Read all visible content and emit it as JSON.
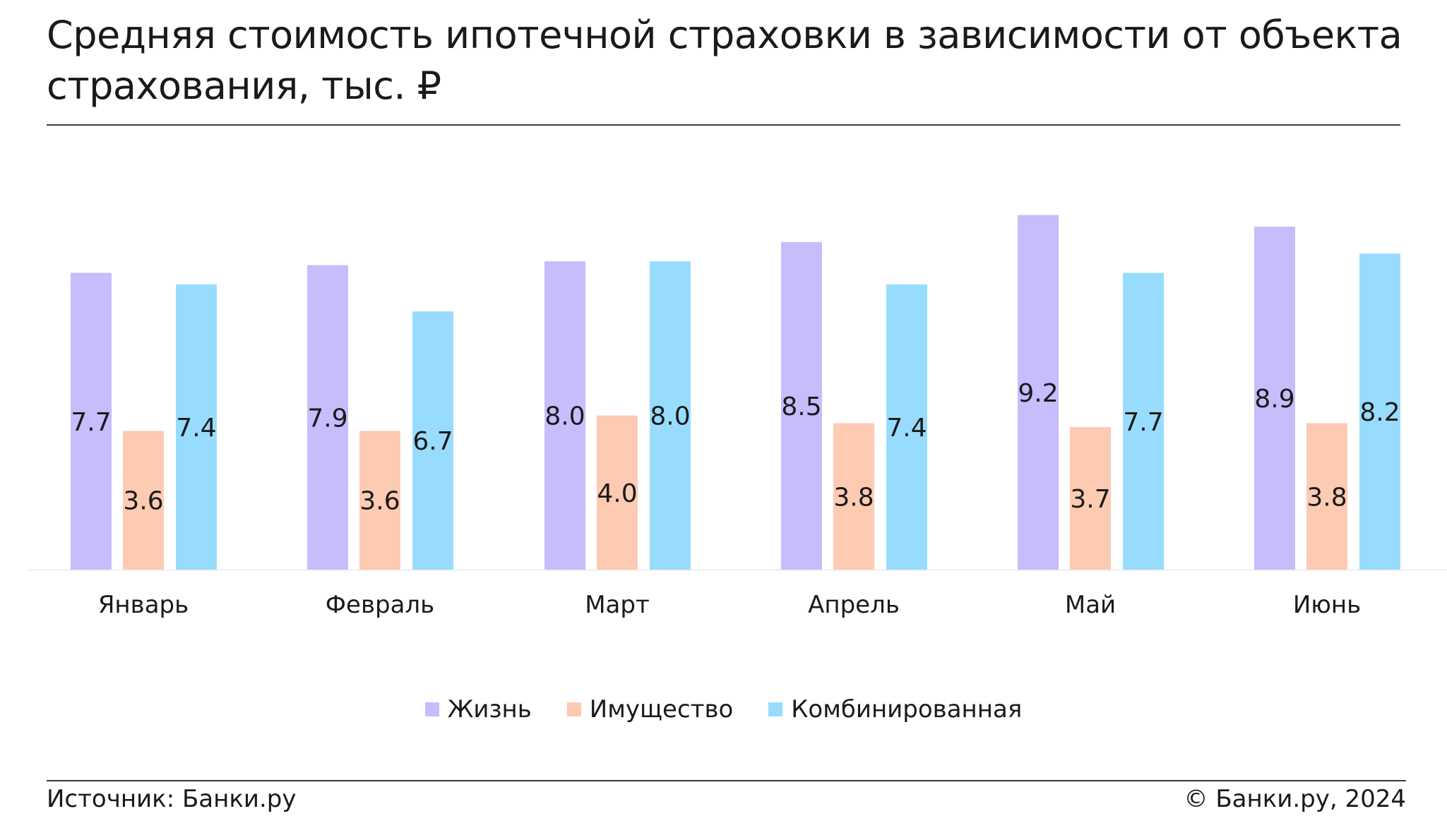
{
  "title": "Средняя стоимость ипотечной страховки в зависимости от объекта страхования, тыс. ₽",
  "footer": {
    "source": "Источник: Банки.ру",
    "copyright": "© Банки.ру, 2024"
  },
  "chart_data": {
    "type": "bar",
    "categories": [
      "Январь",
      "Февраль",
      "Март",
      "Апрель",
      "Май",
      "Июнь"
    ],
    "series": [
      {
        "name": "Жизнь",
        "color": "#c8bcfc",
        "values": [
          7.7,
          7.9,
          8.0,
          8.5,
          9.2,
          8.9
        ],
        "labels": [
          "7.7",
          "7.9",
          "8.0",
          "8.5",
          "9.2",
          "8.9"
        ]
      },
      {
        "name": "Имущество",
        "color": "#fdcab2",
        "values": [
          3.6,
          3.6,
          4.0,
          3.8,
          3.7,
          3.8
        ],
        "labels": [
          "3.6",
          "3.6",
          "4.0",
          "3.8",
          "3.7",
          "3.8"
        ]
      },
      {
        "name": "Комбинированная",
        "color": "#98dcfd",
        "values": [
          7.4,
          6.7,
          8.0,
          7.4,
          7.7,
          8.2
        ],
        "labels": [
          "7.4",
          "6.7",
          "8.0",
          "7.4",
          "7.7",
          "8.2"
        ]
      }
    ],
    "ylim": [
      0,
      10
    ],
    "grid": false,
    "legend_position": "bottom-center"
  }
}
